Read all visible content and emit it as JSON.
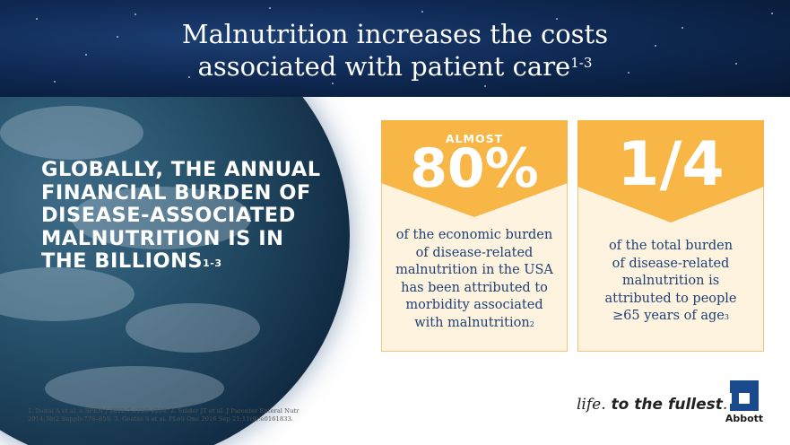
{
  "banner": {
    "title_line1": "Malnutrition increases the costs",
    "title_line2": "associated with patient care",
    "title_ref": "1-3"
  },
  "headline": {
    "lines": [
      "GLOBALLY, THE ANNUAL",
      "FINANCIAL BURDEN OF",
      "DISEASE-ASSOCIATED",
      "MALNUTRITION IS IN",
      "THE BILLIONS"
    ],
    "ref": "1-3"
  },
  "stats": [
    {
      "prefix": "ALMOST",
      "value": "80%",
      "lines": [
        "of the economic burden",
        "of disease-related",
        "malnutrition in the USA",
        "has been attributed to",
        "morbidity associated",
        "with malnutrition"
      ],
      "ref": "2"
    },
    {
      "value": "1/4",
      "lines": [
        "of the total burden",
        "of disease-related",
        "malnutrition is",
        "attributed to people",
        "≥65 years of age"
      ],
      "ref": "3"
    }
  ],
  "references": {
    "line1": "1. Inotai A et al. e-SPEN J 2012;7:e196–e204. 2. Snider JT et al. J Parenter Enteral Nutr",
    "line2": "2014;38(2 Suppl):77S–85S. 3. Goates S et al. PLoS One 2016 Sep 21;11(9):e0161833."
  },
  "brand": {
    "tagline_part1": "life.",
    "tagline_part2": " to the fullest",
    "tagline_end": ".",
    "logo_text": "Abbott",
    "accent_color": "#f7b646",
    "text_color": "#1f3f73"
  }
}
